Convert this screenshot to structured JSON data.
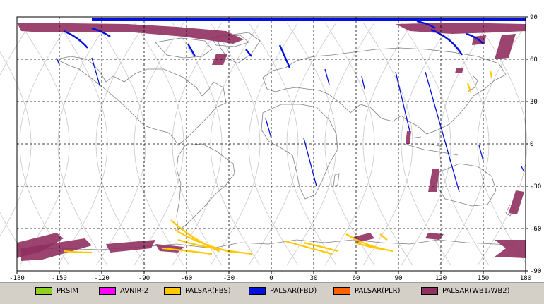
{
  "map": {
    "lon_ticks": [
      "-180",
      "-150",
      "-120",
      "-90",
      "-60",
      "-30",
      "0",
      "30",
      "60",
      "90",
      "120",
      "150",
      "180"
    ],
    "lat_ticks": [
      "90",
      "60",
      "30",
      "0",
      "-30",
      "-60",
      "-90"
    ],
    "lon_range": [
      -180,
      180
    ],
    "lat_range": [
      -90,
      90
    ],
    "grid": "dashed",
    "colors": {
      "coast": "#808080",
      "orbit": "#c8c8c8",
      "grid": "#000000"
    }
  },
  "legend": {
    "items": [
      {
        "label": "PRSIM",
        "color": "#90d020"
      },
      {
        "label": "AVNIR-2",
        "color": "#ff00ff"
      },
      {
        "label": "PALSAR(FBS)",
        "color": "#ffc800"
      },
      {
        "label": "PALSAR(FBD)",
        "color": "#0010e0"
      },
      {
        "label": "PALSAR(PLR)",
        "color": "#ff6000"
      },
      {
        "label": "PALSAR(WB1/WB2)",
        "color": "#903060"
      }
    ]
  }
}
